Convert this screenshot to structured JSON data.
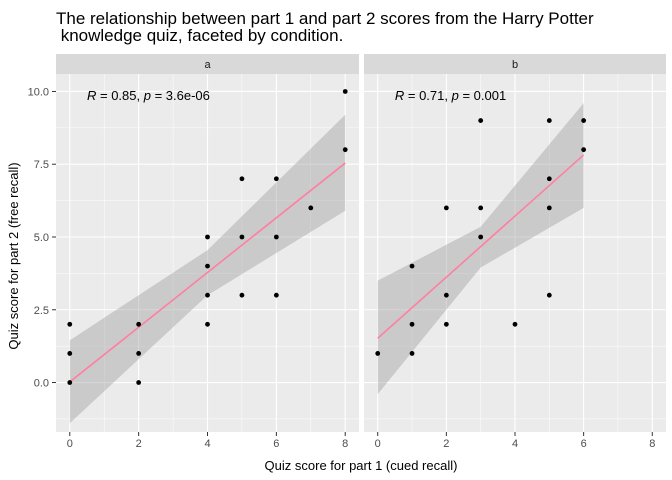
{
  "chart_data": {
    "type": "scatter",
    "title": "The relationship between part 1 and part 2 scores from the Harry Potter knowledge quiz, faceted by condition.",
    "title_lines": [
      "The relationship between part 1 and part 2 scores from the Harry Potter",
      " knowledge quiz, faceted by condition."
    ],
    "xlabel": "Quiz score for part 1 (cued recall)",
    "ylabel": "Quiz score for part 2 (free recall)",
    "xlim": [
      -0.4,
      8.4
    ],
    "ylim": [
      -1.7,
      10.6
    ],
    "x_ticks": [
      0,
      2,
      4,
      6,
      8
    ],
    "y_ticks": [
      0.0,
      2.5,
      5.0,
      7.5,
      10.0
    ],
    "y_tick_labels": [
      "0.0",
      "2.5",
      "5.0",
      "7.5",
      "10.0"
    ],
    "grid": true,
    "smooth_color": "#ff7fa0",
    "ribbon_color": "#999999",
    "point_color": "#000000",
    "facets": [
      {
        "label": "a",
        "annotation": {
          "R": "0.85",
          "p": "3.6e-06"
        },
        "points": [
          [
            0,
            0
          ],
          [
            0,
            1
          ],
          [
            0,
            2
          ],
          [
            2,
            0
          ],
          [
            2,
            1
          ],
          [
            2,
            2
          ],
          [
            4,
            2
          ],
          [
            4,
            3
          ],
          [
            4,
            4
          ],
          [
            4,
            5
          ],
          [
            5,
            3
          ],
          [
            5,
            5
          ],
          [
            5,
            7
          ],
          [
            6,
            3
          ],
          [
            6,
            5
          ],
          [
            6,
            7
          ],
          [
            7,
            6
          ],
          [
            8,
            8
          ],
          [
            8,
            10
          ]
        ],
        "fit": {
          "intercept": 0.02,
          "slope": 0.94,
          "x_range": [
            0,
            8
          ]
        },
        "ci": [
          [
            0,
            -1.4,
            1.45
          ],
          [
            4,
            3.0,
            4.55
          ],
          [
            8,
            5.9,
            9.2
          ]
        ]
      },
      {
        "label": "b",
        "annotation": {
          "R": "0.71",
          "p": "0.001"
        },
        "points": [
          [
            0,
            1
          ],
          [
            1,
            1
          ],
          [
            1,
            2
          ],
          [
            1,
            4
          ],
          [
            2,
            2
          ],
          [
            2,
            3
          ],
          [
            2,
            6
          ],
          [
            3,
            5
          ],
          [
            3,
            6
          ],
          [
            3,
            9
          ],
          [
            4,
            2
          ],
          [
            5,
            3
          ],
          [
            5,
            6
          ],
          [
            5,
            7
          ],
          [
            5,
            9
          ],
          [
            6,
            8
          ],
          [
            6,
            9
          ]
        ],
        "fit": {
          "intercept": 1.52,
          "slope": 1.05,
          "x_range": [
            0,
            6
          ]
        },
        "ci": [
          [
            0,
            -0.4,
            3.5
          ],
          [
            3,
            3.95,
            5.35
          ],
          [
            6,
            6.0,
            9.6
          ]
        ]
      }
    ]
  }
}
